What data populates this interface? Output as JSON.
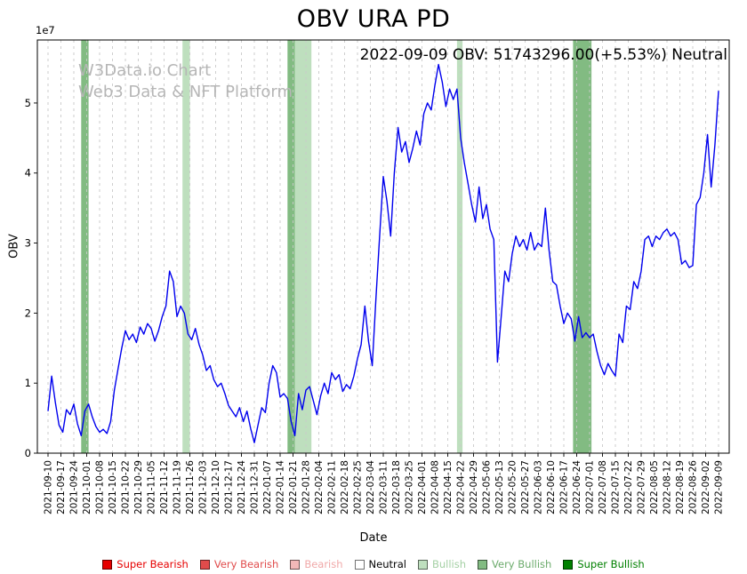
{
  "title": "OBV URA PD",
  "annotation": "2022-09-09 OBV: 51743296.00(+5.53%) Neutral",
  "latest": {
    "date": "2022-09-09",
    "obv": 51743296.0,
    "change_pct": "+5.53%",
    "signal": "Neutral"
  },
  "watermark": {
    "line1": "W3Data.io Chart",
    "line2": "Web3 Data & NFT Platform"
  },
  "chart_data": {
    "type": "line",
    "title": "OBV URA PD",
    "xlabel": "Date",
    "ylabel": "OBV",
    "y_offset_text": "1e7",
    "y_unit_multiplier": 10000000,
    "ylim": [
      0,
      5.9
    ],
    "y_ticks": [
      0,
      1,
      2,
      3,
      4,
      5
    ],
    "grid": {
      "vertical_dashed": true,
      "horizontal": false,
      "color": "#c9c9c9"
    },
    "line_color": "#0000ee",
    "x_start_date": "2021-09-10",
    "x_end_date": "2022-09-09",
    "x_tick_labels": [
      "2021-09-10",
      "2021-09-17",
      "2021-09-24",
      "2021-10-01",
      "2021-10-08",
      "2021-10-15",
      "2021-10-22",
      "2021-10-29",
      "2021-11-05",
      "2021-11-12",
      "2021-11-19",
      "2021-11-26",
      "2021-12-03",
      "2021-12-10",
      "2021-12-17",
      "2021-12-24",
      "2021-12-31",
      "2022-01-07",
      "2022-01-14",
      "2022-01-21",
      "2022-01-28",
      "2022-02-04",
      "2022-02-11",
      "2022-02-18",
      "2022-02-25",
      "2022-03-04",
      "2022-03-11",
      "2022-03-18",
      "2022-03-25",
      "2022-04-01",
      "2022-04-08",
      "2022-04-15",
      "2022-04-22",
      "2022-04-29",
      "2022-05-06",
      "2022-05-13",
      "2022-05-20",
      "2022-05-27",
      "2022-06-03",
      "2022-06-10",
      "2022-06-17",
      "2022-06-24",
      "2022-07-01",
      "2022-07-08",
      "2022-07-15",
      "2022-07-22",
      "2022-07-29",
      "2022-08-05",
      "2022-08-12",
      "2022-08-19",
      "2022-08-26",
      "2022-09-02",
      "2022-09-09"
    ],
    "sample_interval_days": 2,
    "values_1e7": [
      0.6,
      1.1,
      0.72,
      0.4,
      0.3,
      0.62,
      0.55,
      0.7,
      0.42,
      0.25,
      0.6,
      0.7,
      0.52,
      0.38,
      0.3,
      0.34,
      0.28,
      0.45,
      0.9,
      1.2,
      1.5,
      1.75,
      1.62,
      1.7,
      1.58,
      1.8,
      1.7,
      1.85,
      1.78,
      1.6,
      1.75,
      1.95,
      2.1,
      2.6,
      2.45,
      1.95,
      2.1,
      2.0,
      1.7,
      1.62,
      1.78,
      1.55,
      1.4,
      1.18,
      1.25,
      1.05,
      0.95,
      1.0,
      0.85,
      0.68,
      0.6,
      0.52,
      0.65,
      0.45,
      0.6,
      0.35,
      0.15,
      0.4,
      0.65,
      0.58,
      1.0,
      1.25,
      1.15,
      0.8,
      0.85,
      0.78,
      0.45,
      0.25,
      0.85,
      0.62,
      0.9,
      0.95,
      0.75,
      0.55,
      0.82,
      1.0,
      0.85,
      1.15,
      1.05,
      1.12,
      0.88,
      0.98,
      0.92,
      1.1,
      1.35,
      1.55,
      2.1,
      1.6,
      1.25,
      2.2,
      3.1,
      3.95,
      3.6,
      3.1,
      4.0,
      4.65,
      4.3,
      4.45,
      4.15,
      4.35,
      4.6,
      4.4,
      4.85,
      5.0,
      4.9,
      5.25,
      5.55,
      5.3,
      4.95,
      5.2,
      5.05,
      5.2,
      4.5,
      4.15,
      3.85,
      3.55,
      3.3,
      3.8,
      3.35,
      3.55,
      3.2,
      3.05,
      1.3,
      1.95,
      2.6,
      2.45,
      2.85,
      3.1,
      2.95,
      3.05,
      2.9,
      3.15,
      2.9,
      3.0,
      2.95,
      3.5,
      2.9,
      2.45,
      2.4,
      2.1,
      1.85,
      2.0,
      1.92,
      1.6,
      1.95,
      1.65,
      1.72,
      1.65,
      1.7,
      1.45,
      1.25,
      1.12,
      1.28,
      1.18,
      1.1,
      1.7,
      1.58,
      2.1,
      2.05,
      2.45,
      2.35,
      2.6,
      3.05,
      3.1,
      2.95,
      3.1,
      3.05,
      3.15,
      3.2,
      3.1,
      3.15,
      3.05,
      2.7,
      2.75,
      2.65,
      2.68,
      3.55,
      3.65,
      4.0,
      4.55,
      3.8,
      4.4,
      5.1743296
    ],
    "signal_bands": [
      {
        "start": "2021-09-28",
        "end": "2021-10-02",
        "level": "Very Bullish"
      },
      {
        "start": "2021-11-22",
        "end": "2021-11-26",
        "level": "Bullish"
      },
      {
        "start": "2022-01-18",
        "end": "2022-01-22",
        "level": "Very Bullish"
      },
      {
        "start": "2022-01-22",
        "end": "2022-01-31",
        "level": "Bullish"
      },
      {
        "start": "2022-04-20",
        "end": "2022-04-23",
        "level": "Bullish"
      },
      {
        "start": "2022-06-22",
        "end": "2022-07-02",
        "level": "Very Bullish"
      }
    ],
    "band_colors": {
      "Bullish": "#bedfbe",
      "Very Bullish": "#82bb82"
    }
  },
  "legend": {
    "items": [
      {
        "label": "Super Bearish",
        "color": "#e60000",
        "text_color": "#e60000"
      },
      {
        "label": "Very Bearish",
        "color": "#e04b4b",
        "text_color": "#e04b4b"
      },
      {
        "label": "Bearish",
        "color": "#f2b8b8",
        "text_color": "#f0a8a8"
      },
      {
        "label": "Neutral",
        "color": "#ffffff",
        "text_color": "#000000"
      },
      {
        "label": "Bullish",
        "color": "#bedfbe",
        "text_color": "#a4d0a4"
      },
      {
        "label": "Very Bullish",
        "color": "#82bb82",
        "text_color": "#6cab6c"
      },
      {
        "label": "Super Bullish",
        "color": "#008000",
        "text_color": "#008000"
      }
    ]
  }
}
